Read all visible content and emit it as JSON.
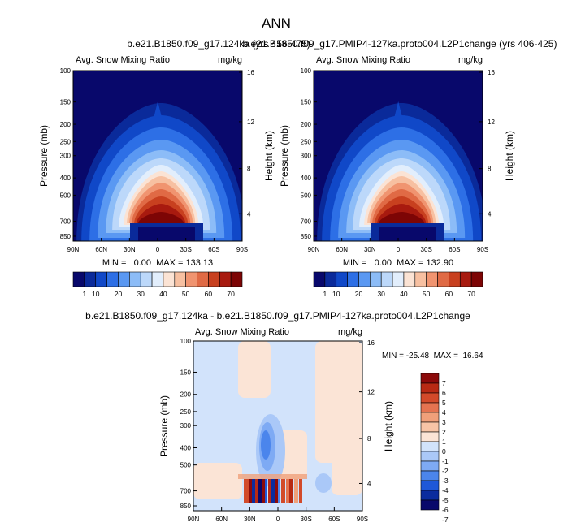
{
  "figure": {
    "title": "ANN"
  },
  "colors": {
    "snow_scale": [
      "#08086b",
      "#0a2a9a",
      "#1048c8",
      "#2d6fe6",
      "#5a98f2",
      "#8cbcf7",
      "#bcd8fa",
      "#e2eefc",
      "#fbe3d4",
      "#f7c0a1",
      "#f09470",
      "#e06a45",
      "#c8401f",
      "#a81a0f",
      "#7d0505"
    ],
    "diff_scale": [
      "#08086b",
      "#0b2c9e",
      "#1e58d8",
      "#4b85ec",
      "#7eaaf4",
      "#aac8f8",
      "#d2e3fb",
      "#fbe4d6",
      "#f7c4a6",
      "#f0a07a",
      "#e47350",
      "#d24a2a",
      "#b82a14",
      "#8c0a0a"
    ]
  },
  "chart_data": [
    {
      "type": "heatmap",
      "name": "case",
      "title": "b.e21.B1850.f09_g17.124ka (yrs 456-475)",
      "left_label": "Avg. Snow Mixing Ratio",
      "right_label": "mg/kg",
      "xlabel": "",
      "ylabel": "Pressure (mb)",
      "y2label": "Height (km)",
      "xticks": [
        "90N",
        "60N",
        "30N",
        "0",
        "30S",
        "60S",
        "90S"
      ],
      "yticks": [
        "100",
        "150",
        "200",
        "250",
        "300",
        "400",
        "500",
        "700",
        "850"
      ],
      "y2ticks": [
        "16",
        "12",
        "8",
        "4"
      ],
      "stats": "MIN =   0.00  MAX = 133.13",
      "colorbar_labels": [
        "1",
        "10",
        "20",
        "30",
        "40",
        "50",
        "60",
        "70"
      ],
      "colorbar_levels": [
        0,
        1,
        5,
        10,
        15,
        20,
        25,
        30,
        35,
        40,
        45,
        50,
        55,
        60,
        65,
        70
      ],
      "peak_value": 133.13
    },
    {
      "type": "heatmap",
      "name": "control",
      "title": "b.e21.B1850.f09_g17.PMIP4-127ka.proto004.L2P1change (yrs 406-425)",
      "left_label": "Avg. Snow Mixing Ratio",
      "right_label": "mg/kg",
      "xlabel": "",
      "ylabel": "Pressure (mb)",
      "y2label": "Height (km)",
      "xticks": [
        "90N",
        "60N",
        "30N",
        "0",
        "30S",
        "60S",
        "90S"
      ],
      "yticks": [
        "100",
        "150",
        "200",
        "250",
        "300",
        "400",
        "500",
        "700",
        "850"
      ],
      "y2ticks": [
        "16",
        "12",
        "8",
        "4"
      ],
      "stats": "MIN =   0.00  MAX = 132.90",
      "colorbar_labels": [
        "1",
        "10",
        "20",
        "30",
        "40",
        "50",
        "60",
        "70"
      ],
      "colorbar_levels": [
        0,
        1,
        5,
        10,
        15,
        20,
        25,
        30,
        35,
        40,
        45,
        50,
        55,
        60,
        65,
        70
      ],
      "peak_value": 132.9
    },
    {
      "type": "heatmap",
      "name": "difference",
      "title": "b.e21.B1850.f09_g17.124ka - b.e21.B1850.f09_g17.PMIP4-127ka.proto004.L2P1change",
      "left_label": "Avg. Snow Mixing Ratio",
      "right_label": "mg/kg",
      "xlabel": "",
      "ylabel": "Pressure (mb)",
      "y2label": "Height (km)",
      "xticks": [
        "90N",
        "60N",
        "30N",
        "0",
        "30S",
        "60S",
        "90S"
      ],
      "yticks": [
        "100",
        "150",
        "200",
        "250",
        "300",
        "400",
        "500",
        "700",
        "850"
      ],
      "y2ticks": [
        "16",
        "12",
        "8",
        "4"
      ],
      "stats": "MIN = -25.48  MAX =  16.64",
      "colorbar_labels": [
        "7",
        "6",
        "5",
        "4",
        "3",
        "2",
        "1",
        "0",
        "-1",
        "-2",
        "-3",
        "-4",
        "-5",
        "-6",
        "-7"
      ],
      "min_value": -25.48,
      "max_value": 16.64
    }
  ]
}
